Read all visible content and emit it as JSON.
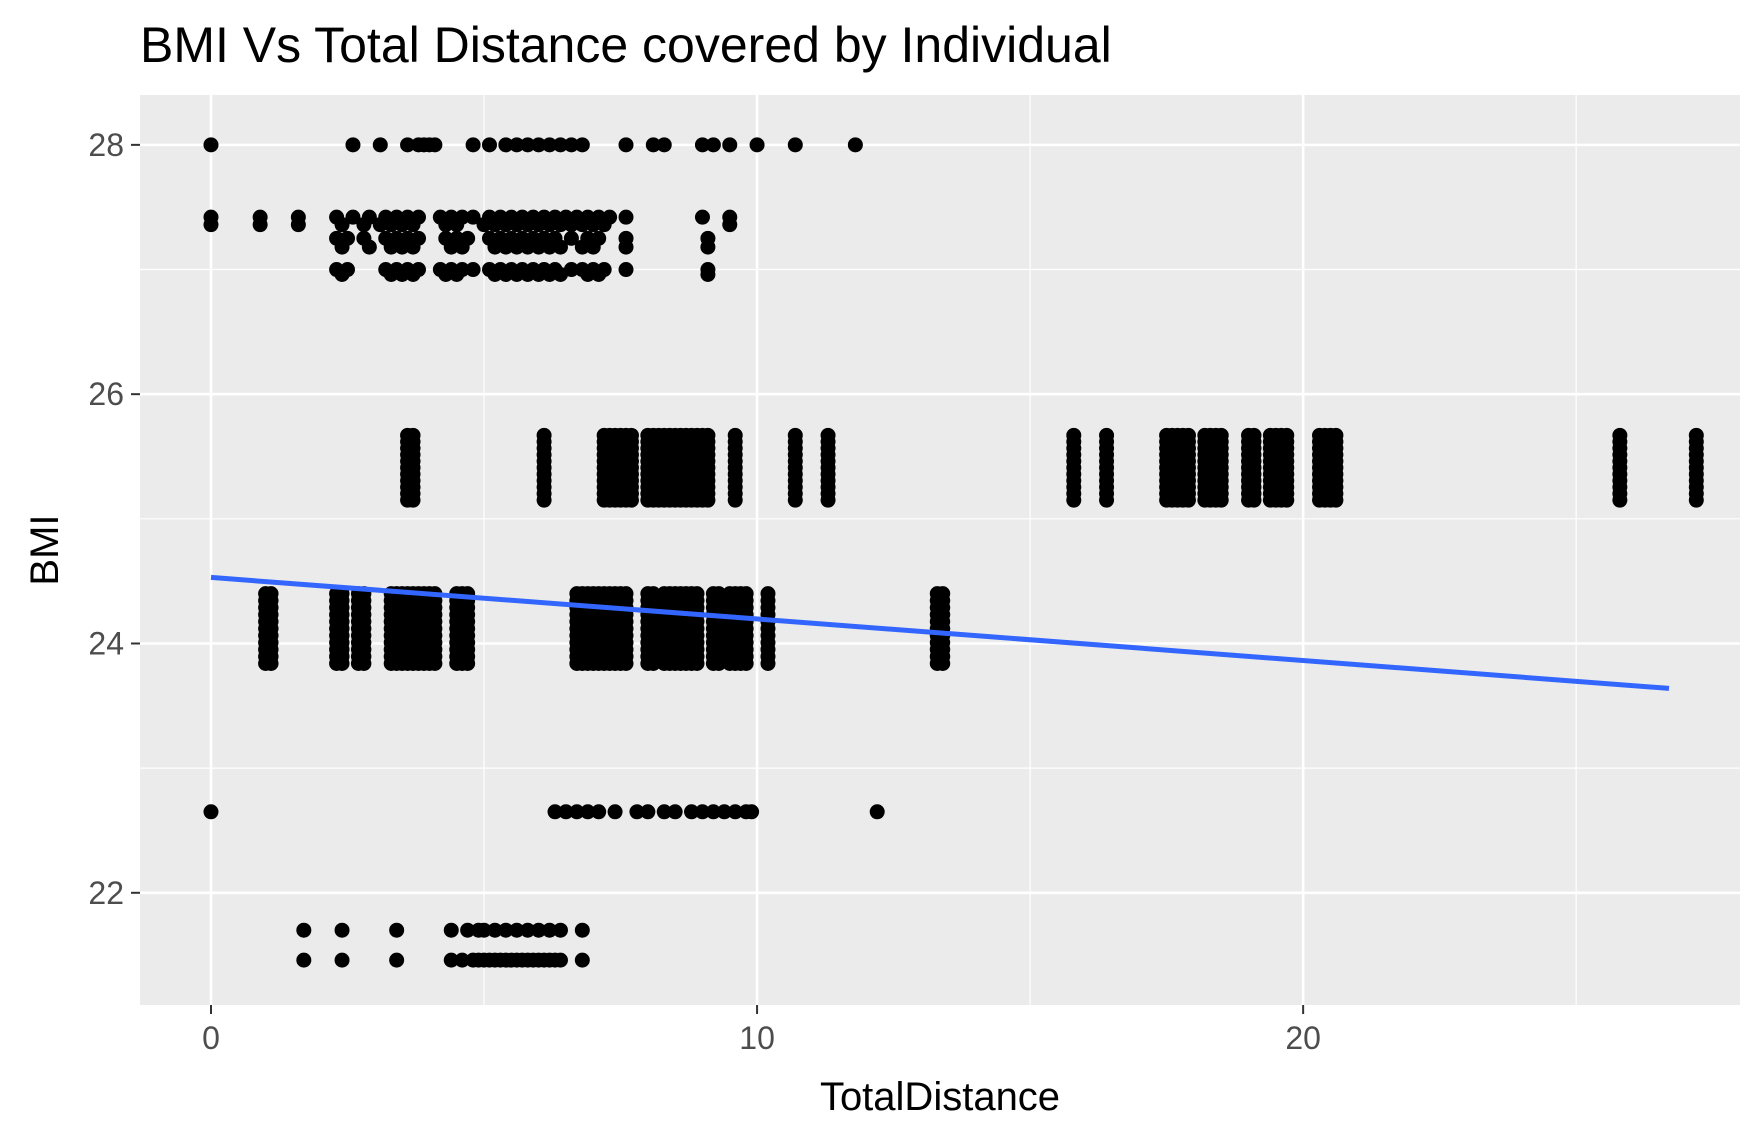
{
  "chart_data": {
    "type": "scatter",
    "title": "BMI Vs Total Distance covered by Individual",
    "xlabel": "TotalDistance",
    "ylabel": "BMI",
    "xlim": [
      -1.3,
      28.0
    ],
    "ylim": [
      21.1,
      28.4
    ],
    "x_ticks": [
      0,
      10,
      20
    ],
    "y_ticks": [
      22,
      24,
      26,
      28
    ],
    "x_minor": [
      5,
      15,
      25
    ],
    "y_minor": [
      23,
      25,
      27
    ],
    "grid": true,
    "legend": "none",
    "colors": {
      "panel": "#EBEBEB",
      "grid": "#FFFFFF",
      "point": "#000000",
      "trend": "#3366FF",
      "tick_text": "#4D4D4D",
      "axis_text": "#000000"
    },
    "bands": [
      {
        "y": 28.0,
        "xs": [
          0,
          2.6,
          3.1,
          3.6,
          3.8,
          3.9,
          4.0,
          4.1,
          4.8,
          5.1,
          5.4,
          5.6,
          5.8,
          6.0,
          6.2,
          6.4,
          6.6,
          6.8,
          7.6,
          8.1,
          8.3,
          9.0,
          9.2,
          9.5,
          10.0,
          10.7,
          11.8
        ]
      },
      {
        "y": 27.42,
        "xs": [
          0,
          0.9,
          1.6,
          2.3,
          2.6,
          2.9,
          3.2,
          3.4,
          3.6,
          3.8,
          4.2,
          4.4,
          4.6,
          4.8,
          5.1,
          5.3,
          5.5,
          5.7,
          5.9,
          6.1,
          6.3,
          6.5,
          6.7,
          6.9,
          7.1,
          7.3,
          7.6,
          9.0,
          9.5
        ]
      },
      {
        "y": 27.36,
        "xs": [
          0,
          0.9,
          1.6,
          2.4,
          2.8,
          3.1,
          3.3,
          3.5,
          3.7,
          4.3,
          4.5,
          5.0,
          5.2,
          5.4,
          5.6,
          5.8,
          6.0,
          6.2,
          6.4,
          6.6,
          6.8,
          7.0,
          7.2,
          9.5
        ]
      },
      {
        "y": 27.25,
        "xs": [
          2.3,
          2.5,
          2.8,
          3.2,
          3.4,
          3.6,
          3.8,
          4.3,
          4.5,
          4.7,
          5.1,
          5.3,
          5.5,
          5.7,
          5.9,
          6.1,
          6.3,
          6.6,
          6.9,
          7.1,
          7.6,
          9.1
        ]
      },
      {
        "y": 27.18,
        "xs": [
          2.4,
          2.9,
          3.3,
          3.5,
          3.7,
          4.4,
          4.6,
          5.2,
          5.4,
          5.6,
          5.8,
          6.0,
          6.2,
          6.4,
          6.8,
          7.0,
          7.6,
          9.1
        ]
      },
      {
        "y": 27.0,
        "xs": [
          2.3,
          2.5,
          3.2,
          3.4,
          3.6,
          3.8,
          4.2,
          4.4,
          4.6,
          4.8,
          5.1,
          5.3,
          5.5,
          5.7,
          5.9,
          6.1,
          6.3,
          6.6,
          6.8,
          7.0,
          7.2,
          7.6,
          9.1
        ]
      },
      {
        "y": 26.96,
        "xs": [
          2.4,
          3.3,
          3.5,
          3.7,
          4.3,
          4.5,
          5.2,
          5.4,
          5.6,
          5.8,
          6.0,
          6.2,
          6.4,
          6.9,
          7.1,
          9.1
        ]
      },
      {
        "y": 22.65,
        "xs": [
          0,
          6.3,
          6.5,
          6.7,
          6.9,
          7.1,
          7.4,
          7.8,
          8.0,
          8.3,
          8.5,
          8.8,
          9.0,
          9.2,
          9.4,
          9.6,
          9.8,
          9.9,
          12.2
        ]
      },
      {
        "y": 21.7,
        "xs": [
          1.7,
          2.4,
          3.4,
          4.4,
          4.7,
          4.9,
          5.0,
          5.2,
          5.4,
          5.6,
          5.8,
          6.0,
          6.2,
          6.4,
          6.8
        ]
      },
      {
        "y": 21.46,
        "xs": [
          1.7,
          2.4,
          3.4,
          4.4,
          4.6,
          4.8,
          4.9,
          5.0,
          5.1,
          5.2,
          5.3,
          5.4,
          5.5,
          5.6,
          5.7,
          5.8,
          5.9,
          6.0,
          6.1,
          6.2,
          6.3,
          6.4,
          6.8
        ]
      }
    ],
    "columns": [
      {
        "y_range": [
          25.15,
          25.67
        ],
        "step": 0.052,
        "xs": [
          3.6,
          3.7,
          6.1,
          7.2,
          7.3,
          7.4,
          7.5,
          7.6,
          7.7,
          8.0,
          8.1,
          8.2,
          8.3,
          8.4,
          8.5,
          8.6,
          8.7,
          8.8,
          8.9,
          9.0,
          9.1,
          9.6,
          10.7,
          11.3,
          15.8,
          16.4,
          17.5,
          17.6,
          17.7,
          17.8,
          17.9,
          18.2,
          18.3,
          18.4,
          18.5,
          19.0,
          19.1,
          19.4,
          19.5,
          19.6,
          19.7,
          20.3,
          20.4,
          20.5,
          20.6,
          25.8,
          27.2
        ]
      },
      {
        "y_range": [
          23.84,
          24.4
        ],
        "step": 0.056,
        "xs": [
          1.0,
          1.1,
          2.3,
          2.4,
          2.7,
          2.8,
          3.3,
          3.4,
          3.5,
          3.6,
          3.7,
          3.8,
          3.9,
          4.0,
          4.1,
          4.5,
          4.6,
          4.7,
          6.7,
          6.8,
          6.9,
          7.0,
          7.1,
          7.2,
          7.3,
          7.4,
          7.5,
          7.6,
          8.0,
          8.1,
          8.3,
          8.4,
          8.5,
          8.6,
          8.7,
          8.8,
          8.9,
          9.2,
          9.3,
          9.5,
          9.6,
          9.7,
          9.8,
          10.2,
          13.3,
          13.4
        ]
      }
    ],
    "trend": {
      "x": [
        0,
        26.7
      ],
      "y": [
        24.53,
        23.64
      ]
    }
  }
}
